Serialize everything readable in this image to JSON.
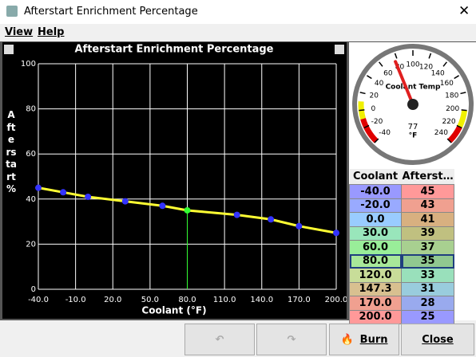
{
  "window": {
    "title": "Afterstart Enrichment Percentage"
  },
  "menu": [
    "View",
    "Help"
  ],
  "chart_data": {
    "type": "line",
    "title": "Afterstart Enrichment Percentage",
    "x_label": "Coolant (°F)",
    "y_label": "Afterstart %",
    "x": [
      -40,
      -20,
      0,
      30,
      60,
      80,
      120,
      147.3,
      170,
      200
    ],
    "series": [
      {
        "name": "Afterstart",
        "color": "#ffff33",
        "point_color": "#3333ff",
        "values": [
          45,
          43,
          41,
          39,
          37,
          35,
          33,
          31,
          28,
          25
        ]
      }
    ],
    "selected_index": 5,
    "selected_color": "#33ff33",
    "xlim": [
      -40,
      200
    ],
    "xticks": [
      {
        "value": -40,
        "label": "-40.0"
      },
      {
        "value": -10,
        "label": "-10.0"
      },
      {
        "value": 20,
        "label": "20.0"
      },
      {
        "value": 50,
        "label": "50.0"
      },
      {
        "value": 80,
        "label": "80.0"
      },
      {
        "value": 110,
        "label": "110.0"
      },
      {
        "value": 140,
        "label": "140.0"
      },
      {
        "value": 170,
        "label": "170.0"
      },
      {
        "value": 200,
        "label": "200.0"
      }
    ],
    "ylim": [
      0,
      100
    ],
    "yticks": [
      0,
      20,
      40,
      60,
      80,
      100
    ],
    "grid": true
  },
  "gauge": {
    "label": "Coolant Temp",
    "value": 77,
    "unit": "°F",
    "min": -40,
    "max": 240,
    "ticks": [
      -40,
      -20,
      0,
      20,
      40,
      60,
      80,
      100,
      120,
      140,
      160,
      180,
      200,
      220,
      240
    ],
    "bands": [
      {
        "from": -40,
        "to": -10,
        "color": "#e00000"
      },
      {
        "from": -10,
        "to": 10,
        "color": "#f0f000"
      },
      {
        "from": 200,
        "to": 220,
        "color": "#f0f000"
      },
      {
        "from": 220,
        "to": 240,
        "color": "#e00000"
      }
    ]
  },
  "table": {
    "headers": [
      "Coolant",
      "Afterst…"
    ],
    "rows": [
      [
        "-40.0",
        "45"
      ],
      [
        "-20.0",
        "43"
      ],
      [
        "0.0",
        "41"
      ],
      [
        "30.0",
        "39"
      ],
      [
        "60.0",
        "37"
      ],
      [
        "80.0",
        "35"
      ],
      [
        "120.0",
        "33"
      ],
      [
        "147.3",
        "31"
      ],
      [
        "170.0",
        "28"
      ],
      [
        "200.0",
        "25"
      ]
    ],
    "colors": [
      [
        "#9999ff",
        "#ff9999"
      ],
      [
        "#99aaff",
        "#f0a090"
      ],
      [
        "#99ccff",
        "#d8b080"
      ],
      [
        "#99e6bb",
        "#c0c080"
      ],
      [
        "#99ee99",
        "#a8d090"
      ],
      [
        "#a8e899",
        "#90c890"
      ],
      [
        "#c8dd99",
        "#99e0bb"
      ],
      [
        "#d8c090",
        "#99ccdd"
      ],
      [
        "#f0a090",
        "#99aaee"
      ],
      [
        "#ff9999",
        "#9999ff"
      ]
    ],
    "selected_row": 5
  },
  "buttons": [
    "Burn",
    "Close"
  ]
}
